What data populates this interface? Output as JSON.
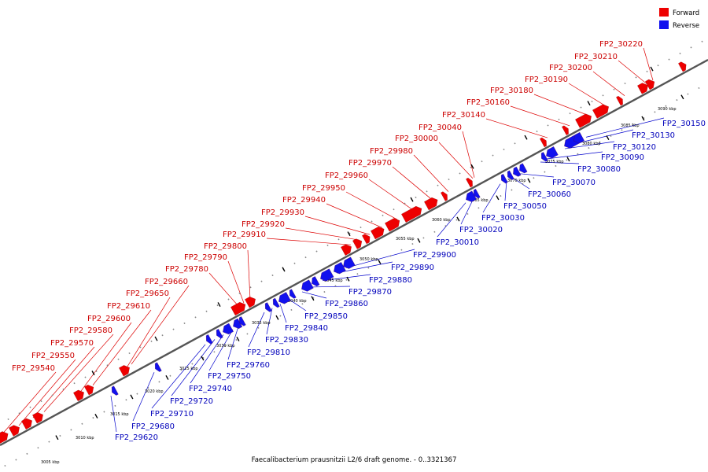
{
  "legend": [
    {
      "label": "Forward",
      "color": "#ee0000"
    },
    {
      "label": "Reverse",
      "color": "#1111ee"
    }
  ],
  "caption": "Faecalibacterium prausnitzii L2/6 draft genome. - 0..3321367",
  "ticks": [
    "3005 kbp",
    "3010 kbp",
    "3015 kbp",
    "3020 kbp",
    "3025 kbp",
    "3030 kbp",
    "3035 kbp",
    "3040 kbp",
    "3045 kbp",
    "3050 kbp",
    "3055 kbp",
    "3060 kbp",
    "3065 kbp",
    "3070 kbp",
    "3075 kbp",
    "3080 kbp",
    "3085 kbp",
    "3090 kbp"
  ],
  "forward_labels": [
    "FP2_29540",
    "FP2_29550",
    "FP2_29570",
    "FP2_29580",
    "FP2_29600",
    "FP2_29610",
    "FP2_29650",
    "FP2_29660",
    "FP2_29780",
    "FP2_29790",
    "FP2_29800",
    "FP2_29910",
    "FP2_29920",
    "FP2_29930",
    "FP2_29940",
    "FP2_29950",
    "FP2_29960",
    "FP2_29970",
    "FP2_29980",
    "FP2_30000",
    "FP2_30040",
    "FP2_30140",
    "FP2_30160",
    "FP2_30180",
    "FP2_30190",
    "FP2_30200",
    "FP2_30210",
    "FP2_30220"
  ],
  "reverse_labels": [
    "FP2_29620",
    "FP2_29680",
    "FP2_29710",
    "FP2_29720",
    "FP2_29740",
    "FP2_29750",
    "FP2_29760",
    "FP2_29810",
    "FP2_29830",
    "FP2_29840",
    "FP2_29850",
    "FP2_29860",
    "FP2_29870",
    "FP2_29880",
    "FP2_29890",
    "FP2_29900",
    "FP2_30010",
    "FP2_30020",
    "FP2_30030",
    "FP2_30050",
    "FP2_30060",
    "FP2_30070",
    "FP2_30080",
    "FP2_30090",
    "FP2_30120",
    "FP2_30130",
    "FP2_30150"
  ]
}
